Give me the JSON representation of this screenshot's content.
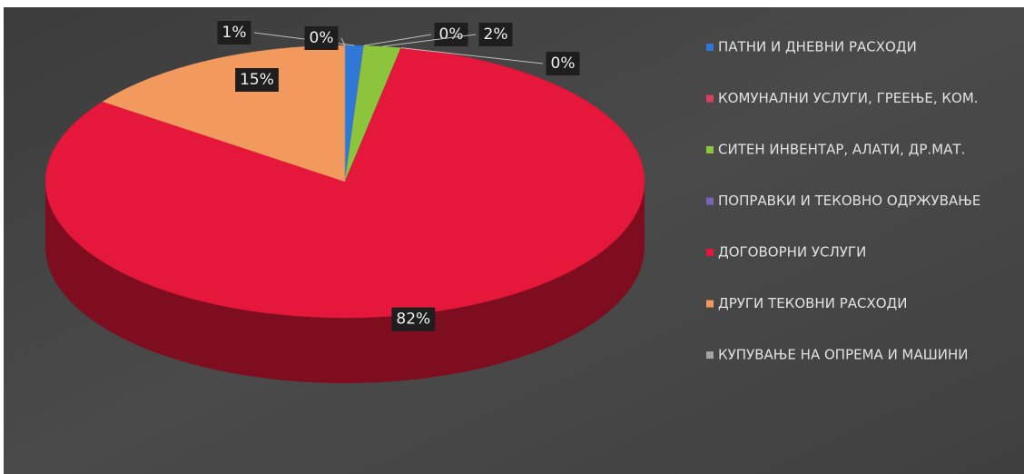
{
  "chart_data": {
    "type": "pie",
    "categories": [
      "ПАТНИ И ДНЕВНИ РАСХОДИ",
      "КОМУНАЛНИ УСЛУГИ, ГРЕЕЊЕ, КОМ.",
      "СИТЕН ИНВЕНТАР, АЛАТИ,  ДР.МАТ.",
      "ПОПРАВКИ И ТЕКОВНО ОДРЖУВАЊЕ",
      "ДОГОВОРНИ УСЛУГИ",
      "ДРУГИ ТЕКОВНИ РАСХОДИ",
      "КУПУВАЊЕ НА ОПРЕМА И МАШИНИ"
    ],
    "values": [
      1,
      0,
      2,
      0,
      82,
      15,
      0
    ],
    "value_labels": [
      "1%",
      "0%",
      "2%",
      "0%",
      "82%",
      "15%",
      "0%"
    ],
    "colors": [
      "#2f78d8",
      "#d9405c",
      "#8cc43c",
      "#7b62b4",
      "#e5173b",
      "#f29a5e",
      "#a3a3a3"
    ],
    "legend": "right"
  }
}
